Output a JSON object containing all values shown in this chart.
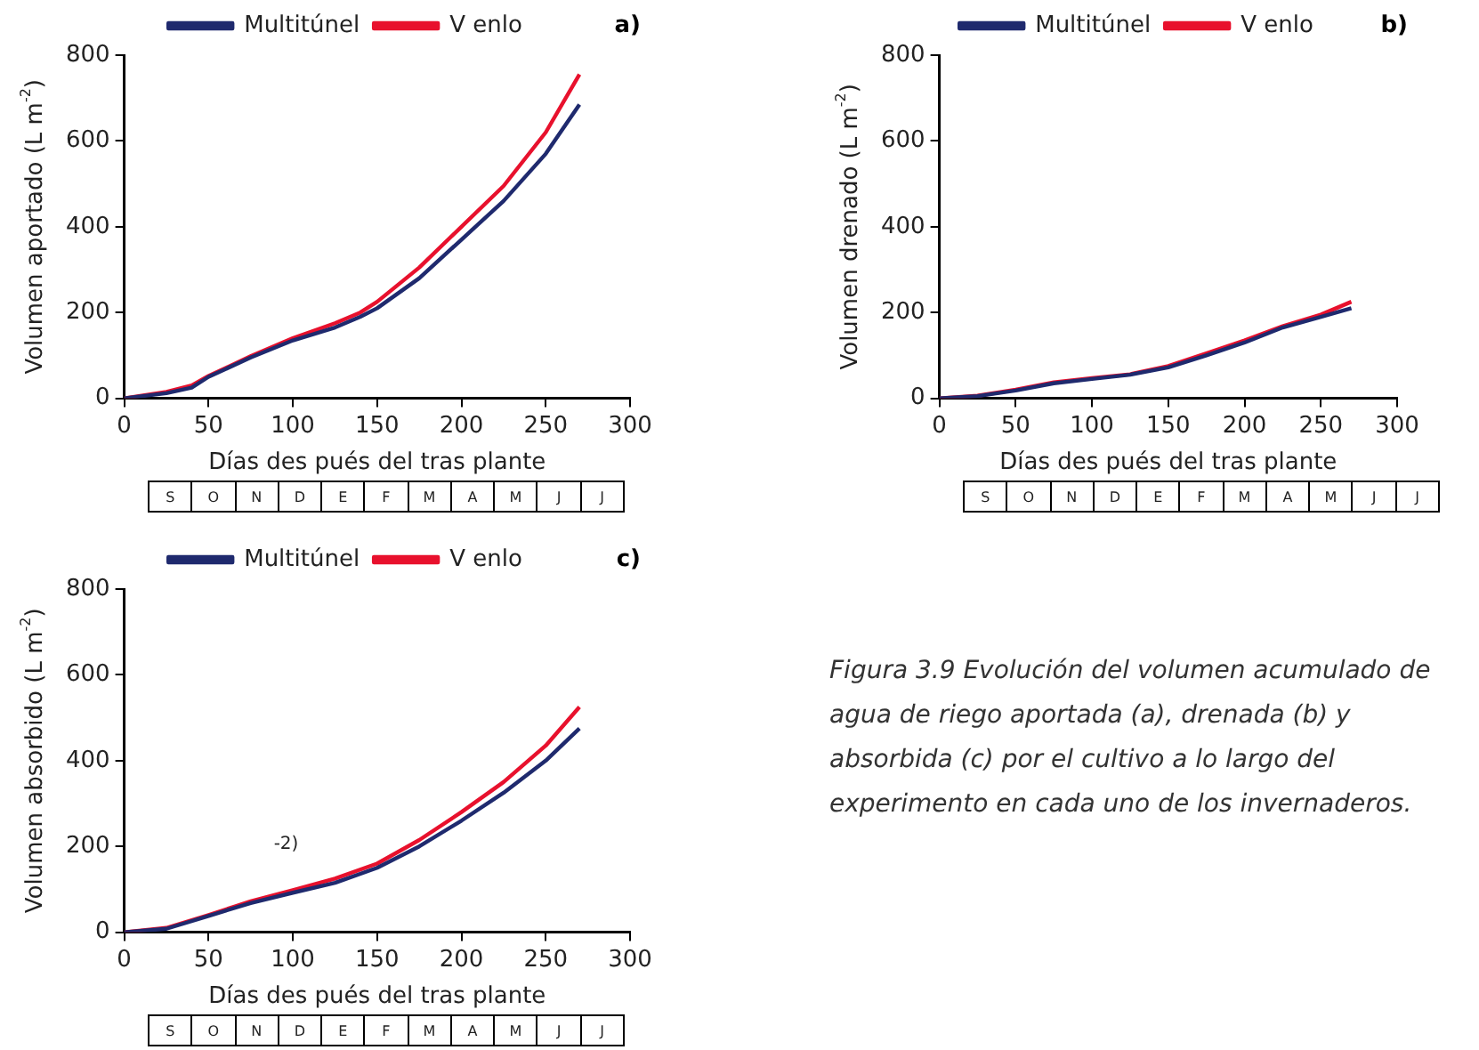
{
  "chart_data": [
    {
      "type": "line",
      "title": "a)",
      "xlabel": "Días des pués del tras plante",
      "ylabel": "Volumen aportado (L m$^{-2}$)",
      "legend": "top",
      "x": [
        0,
        25,
        40,
        50,
        75,
        100,
        125,
        140,
        150,
        175,
        200,
        225,
        250,
        270
      ],
      "series": [
        {
          "name": "Multitúnel",
          "color": "#1f2a6e",
          "values": [
            0,
            12,
            25,
            50,
            95,
            135,
            165,
            190,
            210,
            280,
            370,
            460,
            570,
            685
          ]
        },
        {
          "name": "V enlo",
          "color": "#e8112d",
          "values": [
            0,
            15,
            30,
            52,
            98,
            140,
            175,
            200,
            225,
            305,
            400,
            495,
            620,
            755
          ]
        }
      ],
      "xlim": [
        0,
        300
      ],
      "xticks": [
        0,
        50,
        100,
        150,
        200,
        250,
        300
      ],
      "ylim": [
        0,
        800
      ],
      "yticks": [
        0,
        200,
        400,
        600,
        800
      ]
    },
    {
      "type": "other",
      "annotations": [
        "S",
        "O",
        "N",
        "D",
        "E",
        "F",
        "M",
        "A",
        "M",
        "J",
        "J"
      ]
    },
    {
      "type": "line",
      "title": "b)",
      "xlabel": "Días des pués del tras plante",
      "ylabel": "Volumen drenado (L m$^{-2}$)",
      "legend": "top",
      "x": [
        0,
        25,
        50,
        75,
        100,
        125,
        150,
        175,
        200,
        225,
        250,
        270
      ],
      "series": [
        {
          "name": "Multitúnel",
          "color": "#1f2a6e",
          "values": [
            0,
            5,
            18,
            35,
            45,
            55,
            72,
            100,
            130,
            165,
            190,
            210
          ]
        },
        {
          "name": "V enlo",
          "color": "#e8112d",
          "values": [
            0,
            6,
            20,
            37,
            47,
            56,
            75,
            105,
            135,
            168,
            195,
            225
          ]
        }
      ],
      "xlim": [
        0,
        300
      ],
      "xticks": [
        0,
        50,
        100,
        150,
        200,
        250,
        300
      ],
      "ylim": [
        0,
        800
      ],
      "yticks": [
        0,
        200,
        400,
        600,
        800
      ]
    },
    {
      "type": "other",
      "annotations": [
        "S",
        "O",
        "N",
        "D",
        "E",
        "F",
        "M",
        "A",
        "M",
        "J",
        "J"
      ]
    },
    {
      "type": "line",
      "title": "c)",
      "xlabel": "Días des pués del tras plante",
      "ylabel": "Volumen absorbido (L m$^{-2}$)",
      "legend": "top",
      "x": [
        0,
        25,
        50,
        75,
        100,
        125,
        150,
        175,
        200,
        225,
        250,
        270
      ],
      "series": [
        {
          "name": "Multitúnel",
          "color": "#1f2a6e",
          "values": [
            0,
            8,
            38,
            68,
            92,
            115,
            150,
            200,
            260,
            325,
            400,
            475
          ]
        },
        {
          "name": "V enlo",
          "color": "#e8112d",
          "values": [
            0,
            10,
            40,
            72,
            98,
            125,
            160,
            215,
            280,
            350,
            435,
            525
          ]
        }
      ],
      "xlim": [
        0,
        300
      ],
      "xticks": [
        0,
        50,
        100,
        150,
        200,
        250,
        300
      ],
      "ylim": [
        0,
        800
      ],
      "yticks": [
        0,
        200,
        400,
        600,
        800
      ],
      "annotations": [
        "-2)"
      ]
    },
    {
      "type": "other",
      "annotations": [
        "S",
        "O",
        "N",
        "D",
        "E",
        "F",
        "M",
        "A",
        "M",
        "J",
        "J"
      ]
    },
    {
      "type": "other",
      "annotations": [
        "Figura 3.9 Evolución del volumen acumulado de agua de riego aportada (a), drenada (b) y absorbida (c) por el cultivo a lo largo del experimento en cada uno de los invernaderos."
      ]
    }
  ]
}
